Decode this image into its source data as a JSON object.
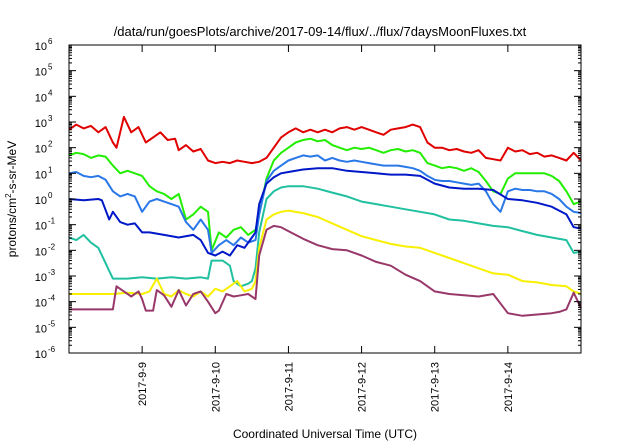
{
  "chart_data": {
    "type": "line",
    "title": "/data/run/goesPlots/archive/2017-09-14/flux/../flux/7daysMoonFluxes.txt",
    "xlabel": "Coordinated Universal Time (UTC)",
    "ylabel": "protons/cm²-s-sr-MeV",
    "ylabel_parts": {
      "a": "protons/cm",
      "sup": "2",
      "b": "-s-sr-MeV"
    },
    "xlim": [
      0,
      7
    ],
    "ylim_exp": [
      -6,
      6
    ],
    "yscale": "log",
    "grid": false,
    "legend": "none",
    "x_ticks": [
      {
        "x": 1,
        "label": "2017-9-9"
      },
      {
        "x": 2,
        "label": "2017-9-10"
      },
      {
        "x": 3,
        "label": "2017-9-11"
      },
      {
        "x": 4,
        "label": "2017-9-12"
      },
      {
        "x": 5,
        "label": "2017-9-13"
      },
      {
        "x": 6,
        "label": "2017-9-14"
      }
    ],
    "y_ticks": [
      {
        "exp": -6,
        "base": "10",
        "sup": "-6"
      },
      {
        "exp": -5,
        "base": "10",
        "sup": "-5"
      },
      {
        "exp": -4,
        "base": "10",
        "sup": "-4"
      },
      {
        "exp": -3,
        "base": "10",
        "sup": "-3"
      },
      {
        "exp": -2,
        "base": "10",
        "sup": "-2"
      },
      {
        "exp": -1,
        "base": "10",
        "sup": "-1"
      },
      {
        "exp": 0,
        "base": "10",
        "sup": "0"
      },
      {
        "exp": 1,
        "base": "10",
        "sup": "1"
      },
      {
        "exp": 2,
        "base": "10",
        "sup": "2"
      },
      {
        "exp": 3,
        "base": "10",
        "sup": "3"
      },
      {
        "exp": 4,
        "base": "10",
        "sup": "4"
      },
      {
        "exp": 5,
        "base": "10",
        "sup": "5"
      },
      {
        "exp": 6,
        "base": "10",
        "sup": "6"
      }
    ],
    "series": [
      {
        "color": "#e00000",
        "x": [
          0.0,
          0.1,
          0.2,
          0.3,
          0.4,
          0.5,
          0.6,
          0.65,
          0.75,
          0.85,
          0.95,
          1.05,
          1.15,
          1.25,
          1.35,
          1.45,
          1.5,
          1.6,
          1.7,
          1.8,
          1.9,
          2.0,
          2.1,
          2.2,
          2.3,
          2.4,
          2.5,
          2.6,
          2.7,
          2.8,
          2.9,
          3.0,
          3.1,
          3.2,
          3.3,
          3.4,
          3.5,
          3.6,
          3.7,
          3.8,
          3.9,
          4.0,
          4.1,
          4.2,
          4.3,
          4.4,
          4.5,
          4.6,
          4.7,
          4.8,
          4.9,
          5.0,
          5.1,
          5.2,
          5.3,
          5.4,
          5.5,
          5.6,
          5.7,
          5.8,
          5.9,
          6.0,
          6.1,
          6.2,
          6.3,
          6.4,
          6.5,
          6.6,
          6.7,
          6.8,
          6.9,
          7.0
        ],
        "y_exp": [
          2.7,
          2.9,
          2.75,
          2.85,
          2.6,
          2.8,
          2.2,
          2.0,
          3.2,
          2.6,
          2.8,
          2.2,
          2.4,
          2.6,
          2.3,
          2.35,
          1.9,
          2.1,
          1.85,
          1.95,
          1.5,
          1.4,
          1.45,
          1.4,
          1.5,
          1.45,
          1.4,
          1.45,
          1.6,
          2.0,
          2.4,
          2.6,
          2.75,
          2.6,
          2.7,
          2.6,
          2.7,
          2.6,
          2.75,
          2.8,
          2.7,
          2.8,
          2.7,
          2.6,
          2.5,
          2.7,
          2.75,
          2.8,
          2.9,
          2.8,
          2.2,
          2.0,
          2.0,
          1.9,
          1.95,
          1.85,
          1.8,
          1.9,
          1.6,
          1.55,
          1.5,
          2.0,
          1.85,
          1.9,
          1.75,
          1.8,
          1.65,
          1.7,
          1.6,
          1.5,
          1.8,
          1.5
        ]
      },
      {
        "color": "#22ee00",
        "x": [
          0.0,
          0.1,
          0.2,
          0.3,
          0.4,
          0.5,
          0.6,
          0.7,
          0.8,
          0.9,
          1.0,
          1.1,
          1.2,
          1.3,
          1.4,
          1.5,
          1.6,
          1.7,
          1.8,
          1.9,
          1.95,
          2.05,
          2.15,
          2.25,
          2.35,
          2.45,
          2.55,
          2.6,
          2.7,
          2.8,
          2.9,
          3.0,
          3.1,
          3.2,
          3.3,
          3.4,
          3.5,
          3.6,
          3.7,
          3.8,
          3.9,
          4.0,
          4.1,
          4.2,
          4.3,
          4.4,
          4.5,
          4.6,
          4.7,
          4.8,
          4.9,
          5.0,
          5.1,
          5.2,
          5.3,
          5.4,
          5.5,
          5.6,
          5.7,
          5.8,
          5.9,
          6.0,
          6.1,
          6.2,
          6.3,
          6.4,
          6.5,
          6.6,
          6.7,
          6.8,
          6.9,
          7.0
        ],
        "y_exp": [
          1.7,
          1.8,
          1.75,
          1.6,
          1.7,
          1.65,
          1.3,
          1.0,
          1.1,
          1.0,
          0.9,
          0.5,
          0.3,
          0.2,
          0.0,
          0.2,
          -0.8,
          -0.6,
          -0.3,
          -0.5,
          -2.0,
          -1.3,
          -1.5,
          -1.2,
          -1.1,
          -1.4,
          -1.2,
          -0.6,
          0.8,
          1.5,
          1.8,
          2.0,
          2.2,
          2.3,
          2.35,
          2.25,
          2.3,
          2.1,
          2.0,
          1.9,
          2.0,
          1.95,
          2.0,
          1.9,
          1.8,
          1.9,
          1.95,
          1.85,
          1.9,
          1.8,
          1.4,
          1.3,
          1.2,
          1.25,
          1.2,
          1.1,
          1.2,
          1.05,
          0.7,
          0.3,
          0.2,
          0.8,
          1.0,
          1.0,
          1.0,
          1.0,
          1.0,
          0.9,
          0.7,
          0.3,
          -0.2,
          -0.1
        ]
      },
      {
        "color": "#2a78e8",
        "x": [
          0.0,
          0.1,
          0.2,
          0.3,
          0.4,
          0.5,
          0.6,
          0.7,
          0.8,
          0.9,
          1.0,
          1.1,
          1.2,
          1.3,
          1.4,
          1.5,
          1.6,
          1.7,
          1.8,
          1.9,
          1.95,
          2.05,
          2.15,
          2.25,
          2.35,
          2.45,
          2.55,
          2.6,
          2.7,
          2.8,
          2.9,
          3.0,
          3.1,
          3.2,
          3.3,
          3.4,
          3.5,
          3.6,
          3.7,
          3.8,
          3.9,
          4.0,
          4.1,
          4.2,
          4.3,
          4.4,
          4.5,
          4.6,
          4.7,
          4.8,
          4.9,
          5.0,
          5.1,
          5.2,
          5.3,
          5.4,
          5.5,
          5.6,
          5.7,
          5.8,
          5.9,
          6.0,
          6.1,
          6.2,
          6.3,
          6.4,
          6.5,
          6.6,
          6.7,
          6.8,
          6.9,
          7.0
        ],
        "y_exp": [
          1.0,
          1.05,
          0.9,
          0.85,
          0.9,
          0.75,
          0.3,
          0.1,
          0.2,
          0.1,
          -0.5,
          -0.1,
          0.0,
          -0.1,
          -0.2,
          -0.3,
          -0.9,
          -1.2,
          -0.8,
          -1.2,
          -2.1,
          -1.8,
          -1.6,
          -1.8,
          -1.5,
          -1.7,
          -1.6,
          -0.6,
          0.7,
          1.1,
          1.3,
          1.5,
          1.6,
          1.7,
          1.65,
          1.7,
          1.5,
          1.6,
          1.5,
          1.45,
          1.5,
          1.45,
          1.4,
          1.35,
          1.3,
          1.3,
          1.3,
          1.25,
          1.2,
          1.1,
          0.9,
          0.75,
          0.7,
          0.7,
          0.65,
          0.6,
          0.55,
          0.6,
          0.3,
          -0.2,
          -0.5,
          0.3,
          0.4,
          0.35,
          0.35,
          0.3,
          0.3,
          0.2,
          0.0,
          -0.3,
          -0.5,
          -0.55
        ]
      },
      {
        "color": "#0018c8",
        "x": [
          0.0,
          0.2,
          0.4,
          0.45,
          0.55,
          0.6,
          0.7,
          0.8,
          0.9,
          1.0,
          1.1,
          1.3,
          1.5,
          1.7,
          1.8,
          1.9,
          2.0,
          2.1,
          2.2,
          2.3,
          2.4,
          2.5,
          2.55,
          2.6,
          2.7,
          2.8,
          2.9,
          3.0,
          3.2,
          3.4,
          3.6,
          3.8,
          4.0,
          4.2,
          4.4,
          4.6,
          4.8,
          5.0,
          5.2,
          5.4,
          5.6,
          5.8,
          6.0,
          6.2,
          6.4,
          6.6,
          6.8,
          6.9,
          7.0
        ],
        "y_exp": [
          0.0,
          -0.05,
          0.0,
          -0.05,
          -0.8,
          -0.5,
          -0.9,
          -1.0,
          -0.95,
          -1.3,
          -1.3,
          -1.4,
          -1.5,
          -1.4,
          -1.6,
          -2.1,
          -2.2,
          -2.05,
          -2.2,
          -1.8,
          -1.9,
          -1.5,
          -1.3,
          -0.2,
          0.6,
          0.85,
          1.0,
          1.05,
          1.15,
          1.2,
          1.2,
          1.1,
          1.05,
          1.0,
          0.95,
          0.95,
          0.9,
          0.6,
          0.45,
          0.4,
          0.4,
          0.35,
          0.0,
          -0.05,
          -0.15,
          -0.3,
          -0.6,
          -1.1,
          -1.15
        ]
      },
      {
        "color": "#20c0a0",
        "x": [
          0.0,
          0.1,
          0.2,
          0.3,
          0.4,
          0.5,
          0.55,
          0.6,
          0.8,
          1.0,
          1.2,
          1.4,
          1.6,
          1.8,
          1.9,
          1.95,
          2.1,
          2.2,
          2.25,
          2.35,
          2.45,
          2.5,
          2.55,
          2.6,
          2.7,
          2.8,
          2.9,
          3.0,
          3.2,
          3.4,
          3.6,
          3.8,
          4.0,
          4.2,
          4.4,
          4.6,
          4.8,
          5.0,
          5.2,
          5.4,
          5.6,
          5.8,
          6.0,
          6.2,
          6.4,
          6.6,
          6.8,
          6.9,
          7.0
        ],
        "y_exp": [
          -1.5,
          -1.6,
          -1.4,
          -1.7,
          -1.9,
          -2.5,
          -2.8,
          -3.1,
          -3.1,
          -3.05,
          -3.1,
          -3.05,
          -3.1,
          -3.05,
          -3.1,
          -2.4,
          -2.4,
          -2.6,
          -3.2,
          -3.4,
          -3.3,
          -3.2,
          -2.7,
          -1.3,
          0.0,
          0.3,
          0.45,
          0.5,
          0.5,
          0.4,
          0.25,
          0.1,
          -0.1,
          -0.2,
          -0.3,
          -0.4,
          -0.5,
          -0.6,
          -0.8,
          -0.85,
          -0.95,
          -1.05,
          -1.1,
          -1.25,
          -1.4,
          -1.5,
          -1.6,
          -2.1,
          -2.05
        ]
      },
      {
        "color": "#f8f000",
        "x": [
          0.0,
          0.4,
          0.6,
          0.8,
          1.0,
          1.1,
          1.2,
          1.3,
          1.4,
          1.5,
          1.6,
          1.7,
          1.8,
          1.9,
          2.0,
          2.1,
          2.2,
          2.3,
          2.4,
          2.5,
          2.55,
          2.6,
          2.7,
          2.8,
          2.9,
          3.0,
          3.2,
          3.4,
          3.6,
          3.8,
          4.0,
          4.2,
          4.4,
          4.6,
          4.8,
          5.0,
          5.2,
          5.4,
          5.6,
          5.8,
          6.0,
          6.2,
          6.4,
          6.6,
          6.8,
          6.9,
          7.0
        ],
        "y_exp": [
          -3.7,
          -3.7,
          -3.7,
          -3.65,
          -3.7,
          -3.6,
          -3.1,
          -3.7,
          -3.8,
          -3.55,
          -3.7,
          -3.8,
          -3.6,
          -3.8,
          -3.5,
          -3.6,
          -3.4,
          -3.2,
          -3.6,
          -3.5,
          -3.2,
          -1.9,
          -0.8,
          -0.6,
          -0.5,
          -0.45,
          -0.55,
          -0.7,
          -0.95,
          -1.2,
          -1.45,
          -1.6,
          -1.75,
          -1.85,
          -1.9,
          -2.1,
          -2.3,
          -2.5,
          -2.7,
          -2.9,
          -2.95,
          -3.2,
          -3.25,
          -3.35,
          -3.4,
          -3.6,
          -3.7
        ]
      },
      {
        "color": "#98386a",
        "x": [
          0.0,
          0.2,
          0.4,
          0.6,
          0.65,
          0.75,
          0.85,
          0.95,
          1.0,
          1.05,
          1.15,
          1.2,
          1.3,
          1.4,
          1.5,
          1.6,
          1.7,
          1.8,
          1.9,
          2.0,
          2.05,
          2.15,
          2.25,
          2.35,
          2.45,
          2.55,
          2.6,
          2.7,
          2.8,
          2.9,
          3.0,
          3.2,
          3.4,
          3.6,
          3.8,
          4.0,
          4.2,
          4.4,
          4.6,
          4.8,
          5.0,
          5.2,
          5.4,
          5.6,
          5.8,
          6.0,
          6.2,
          6.4,
          6.6,
          6.7,
          6.8,
          6.9,
          7.0
        ],
        "y_exp": [
          -4.3,
          -4.3,
          -4.3,
          -4.3,
          -3.4,
          -3.6,
          -3.8,
          -3.6,
          -3.9,
          -4.35,
          -4.35,
          -3.55,
          -3.75,
          -4.2,
          -3.55,
          -4.15,
          -3.7,
          -3.6,
          -4.0,
          -4.45,
          -4.35,
          -3.7,
          -3.8,
          -3.75,
          -3.7,
          -3.9,
          -2.2,
          -1.2,
          -1.05,
          -1.1,
          -1.25,
          -1.55,
          -1.8,
          -1.95,
          -2.0,
          -2.2,
          -2.45,
          -2.6,
          -2.95,
          -3.2,
          -3.6,
          -3.7,
          -3.75,
          -3.8,
          -3.7,
          -4.45,
          -4.55,
          -4.5,
          -4.45,
          -4.4,
          -4.3,
          -3.65,
          -4.25
        ]
      }
    ]
  }
}
